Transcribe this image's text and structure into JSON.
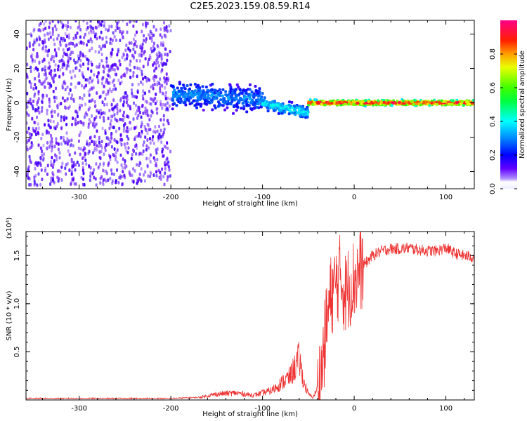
{
  "title": "C2E5.2023.159.08.59.R14",
  "colors": {
    "snr_line": "#ee3333",
    "frame": "#000000"
  },
  "chart_data": [
    {
      "type": "heatmap",
      "xlabel": "Height of straight line (km)",
      "ylabel": "Frequency (Hz)",
      "xlim": [
        -358,
        131
      ],
      "ylim": [
        -50,
        48
      ],
      "x_ticks": [
        -300,
        -200,
        -100,
        0,
        100
      ],
      "x_tick_labels": [
        "-300",
        "-200",
        "-100",
        "0",
        "100"
      ],
      "y_ticks": [
        -40,
        -20,
        0,
        20,
        40
      ],
      "y_tick_labels": [
        "-40",
        "-20",
        "0",
        "20",
        "40"
      ],
      "colorbar": {
        "label": "Normalized spectral amplitude",
        "range": [
          0,
          1
        ],
        "ticks": [
          0.0,
          0.2,
          0.4,
          0.6,
          0.8
        ],
        "tick_labels": [
          "0.0",
          "0.2",
          "0.4",
          "0.6",
          "0.8"
        ]
      },
      "regions": [
        {
          "x_range": [
            -358,
            -200
          ],
          "freq_spread": 48,
          "amplitude": 0.08,
          "note": "broadband noise"
        },
        {
          "x_range": [
            -200,
            -100
          ],
          "center_hz": [
            5,
            2
          ],
          "spread_hz": 10,
          "amplitude": 0.25
        },
        {
          "x_range": [
            -100,
            -50
          ],
          "center_hz": [
            0,
            -6
          ],
          "spread_hz": 5,
          "amplitude": 0.35
        },
        {
          "x_range": [
            -50,
            131
          ],
          "center_hz": [
            0,
            0
          ],
          "spread_hz": 2,
          "amplitude": 0.9
        }
      ]
    },
    {
      "type": "line",
      "xlabel": "Height of straight line (km)",
      "ylabel": "SNR (10 * v/v)",
      "y_scale_label": "(x10⁴)",
      "xlim": [
        -358,
        131
      ],
      "ylim": [
        0,
        1.75
      ],
      "x_ticks": [
        -300,
        -200,
        -100,
        0,
        100
      ],
      "x_tick_labels": [
        "-300",
        "-200",
        "-100",
        "0",
        "100"
      ],
      "y_ticks": [
        0.5,
        1.0,
        1.5
      ],
      "y_tick_labels": [
        "0.5",
        "1.0",
        "1.5"
      ],
      "series": [
        {
          "x": [
            -358,
            -300,
            -250,
            -200,
            -170,
            -150,
            -130,
            -110,
            -90,
            -70,
            -60,
            -55,
            -50,
            -45,
            -40,
            -35,
            -30,
            -25,
            -20,
            -15,
            -10,
            -5,
            0,
            10,
            20,
            30,
            40,
            50,
            60,
            70,
            80,
            90,
            100,
            110,
            120,
            131
          ],
          "y": [
            0.01,
            0.01,
            0.01,
            0.01,
            0.02,
            0.05,
            0.06,
            0.04,
            0.08,
            0.2,
            0.35,
            0.15,
            0.05,
            0.02,
            0.1,
            0.35,
            0.8,
            1.1,
            1.2,
            1.3,
            1.1,
            1.2,
            1.25,
            1.4,
            1.5,
            1.55,
            1.57,
            1.57,
            1.58,
            1.56,
            1.55,
            1.55,
            1.58,
            1.52,
            1.5,
            1.48
          ]
        }
      ]
    }
  ]
}
